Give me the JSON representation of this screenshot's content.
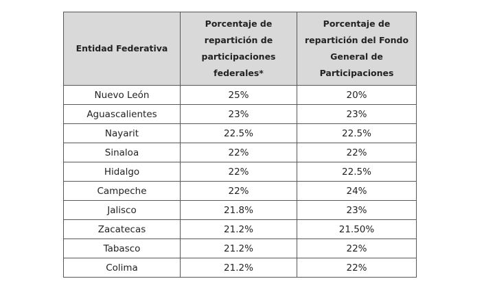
{
  "table": {
    "header": [
      "Entidad Federativa",
      "Porcentaje de repartición de participaciones federales*",
      "Porcentaje de repartición del Fondo General de Participaciones"
    ],
    "rows": [
      [
        "Nuevo León",
        "25%",
        "20%"
      ],
      [
        "Aguascalientes",
        "23%",
        "23%"
      ],
      [
        "Nayarit",
        "22.5%",
        "22.5%"
      ],
      [
        "Sinaloa",
        "22%",
        "22%"
      ],
      [
        "Hidalgo",
        "22%",
        "22.5%"
      ],
      [
        "Campeche",
        "22%",
        "24%"
      ],
      [
        "Jalisco",
        "21.8%",
        "23%"
      ],
      [
        "Zacatecas",
        "21.2%",
        "21.50%"
      ],
      [
        "Tabasco",
        "21.2%",
        "22%"
      ],
      [
        "Colima",
        "21.2%",
        "22%"
      ]
    ]
  }
}
